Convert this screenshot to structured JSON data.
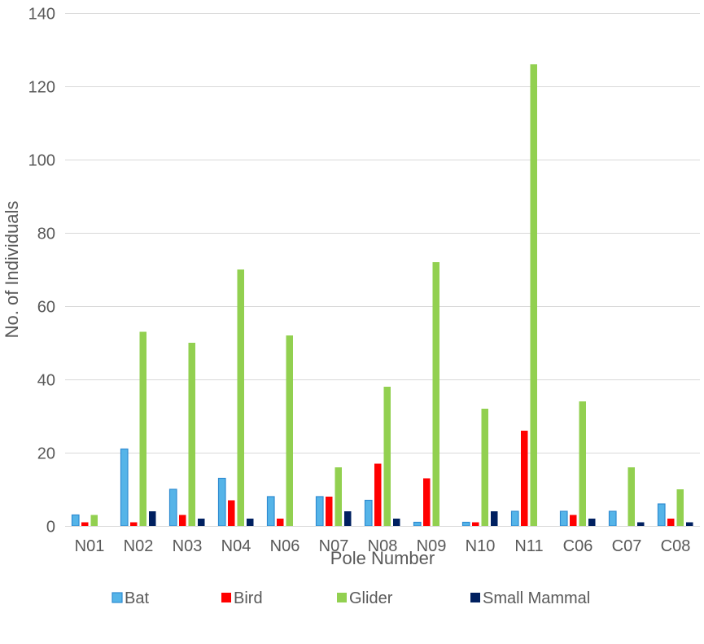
{
  "chart_data": {
    "type": "bar",
    "xlabel": "Pole Number",
    "ylabel": "No. of Individuals",
    "ylim": [
      0,
      140
    ],
    "yticks": [
      0,
      20,
      40,
      60,
      80,
      100,
      120,
      140
    ],
    "grid": true,
    "legend_position": "bottom",
    "categories": [
      "N01",
      "N02",
      "N03",
      "N04",
      "N06",
      "N07",
      "N08",
      "N09",
      "N10",
      "N11",
      "C06",
      "C07",
      "C08"
    ],
    "series": [
      {
        "name": "Bat",
        "color": "#55B4E8",
        "border_color": "#2E8BD1",
        "values": [
          3,
          21,
          10,
          13,
          8,
          8,
          7,
          1,
          1,
          4,
          4,
          4,
          6
        ]
      },
      {
        "name": "Bird",
        "color": "#FF0000",
        "border_color": "#FF0000",
        "values": [
          1,
          1,
          3,
          7,
          2,
          8,
          17,
          13,
          1,
          26,
          3,
          0,
          2
        ]
      },
      {
        "name": "Glider",
        "color": "#92D050",
        "border_color": "#92D050",
        "values": [
          3,
          53,
          50,
          70,
          52,
          16,
          38,
          72,
          32,
          126,
          34,
          16,
          10
        ]
      },
      {
        "name": "Small Mammal",
        "color": "#002060",
        "border_color": "#002060",
        "values": [
          0,
          4,
          2,
          2,
          0,
          4,
          2,
          0,
          4,
          0,
          2,
          1,
          1
        ]
      }
    ]
  }
}
